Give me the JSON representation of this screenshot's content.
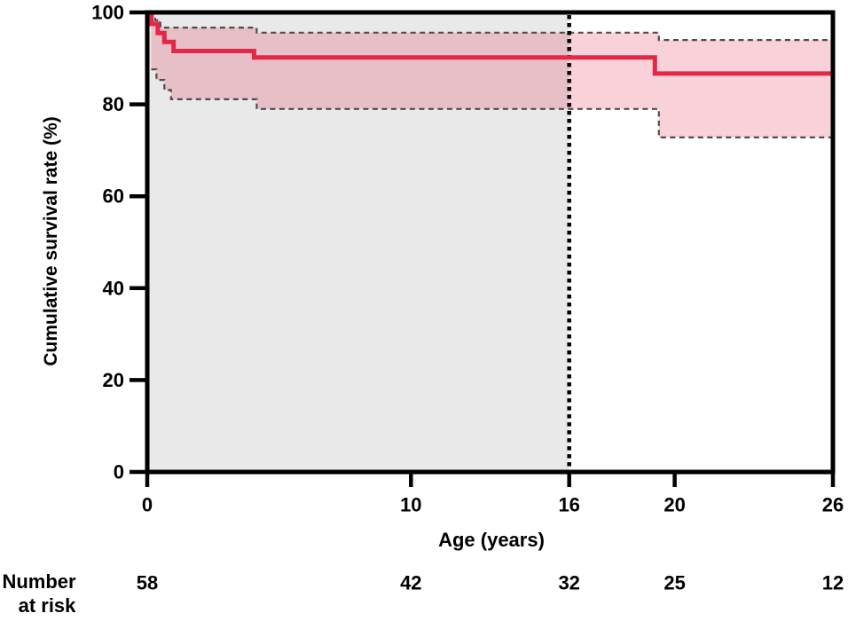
{
  "page": {
    "background_color": "#ffffff"
  },
  "chart_data": {
    "type": "line",
    "subtype": "kaplan-meier-step-with-confidence-band",
    "title": "",
    "xlabel": "Age (years)",
    "ylabel": "Cumulative survival rate (%)",
    "xlim": [
      0,
      26
    ],
    "ylim": [
      0,
      100
    ],
    "x_ticks": [
      0,
      10,
      16,
      20,
      26
    ],
    "y_ticks": [
      0,
      20,
      40,
      60,
      80,
      100
    ],
    "grid": false,
    "legend": false,
    "frame": {
      "color": "#000000",
      "width": 5
    },
    "tick_style": {
      "length": 15,
      "width": 4.5,
      "color": "#000000",
      "label_font_size": 22
    },
    "shaded_region": {
      "x_start": 0,
      "x_end": 16,
      "color": "#e9e9e9"
    },
    "cutoff_line": {
      "x": 16,
      "style": "dotted",
      "color": "#000000",
      "width": 4.5,
      "dash": "4.5 4.5"
    },
    "confidence_band": {
      "fill": "rgba(226,39,71,0.21)"
    },
    "series": [
      {
        "name": "ci-upper",
        "label": "95% CI upper bound",
        "color": "#4d4d4d",
        "width": 2.2,
        "dash": "6 4.5",
        "steps": [
          [
            0.15,
            100
          ],
          [
            0.3,
            98.3
          ],
          [
            0.5,
            96.7
          ],
          [
            4.15,
            95.6
          ],
          [
            19.4,
            94.0
          ]
        ],
        "x_end": 26
      },
      {
        "name": "ci-lower",
        "label": "95% CI lower bound",
        "color": "#4d4d4d",
        "width": 2.2,
        "dash": "6 4.5",
        "steps": [
          [
            0.15,
            87.6
          ],
          [
            0.35,
            85.3
          ],
          [
            0.65,
            83.1
          ],
          [
            0.9,
            81.1
          ],
          [
            4.15,
            79.0
          ],
          [
            19.4,
            72.8
          ]
        ],
        "x_end": 26
      },
      {
        "name": "survival",
        "label": "Cumulative survival rate",
        "color": "#e22747",
        "width": 5,
        "dash": null,
        "steps": [
          [
            0,
            100
          ],
          [
            0.15,
            97.5
          ],
          [
            0.4,
            95.5
          ],
          [
            0.65,
            93.6
          ],
          [
            1.0,
            91.6
          ],
          [
            4.05,
            90.2
          ],
          [
            19.25,
            86.7
          ]
        ],
        "x_end": 26
      }
    ],
    "number_at_risk": {
      "label_line1": "Number",
      "label_line2": "at risk",
      "positions": [
        0,
        10,
        16,
        20,
        26
      ],
      "values": [
        58,
        42,
        32,
        25,
        12
      ]
    }
  }
}
